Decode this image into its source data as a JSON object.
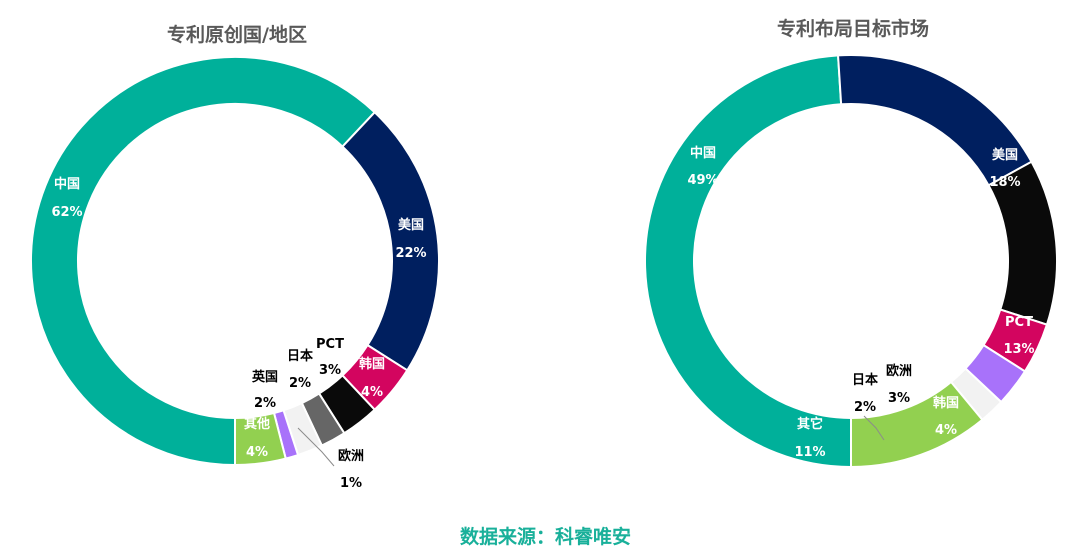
{
  "colors": {
    "teal": "#00B09A",
    "navy": "#001F5F",
    "magenta": "#D3055F",
    "black": "#0A0A0A",
    "darkgray": "#666666",
    "lightgray": "#F2F2F2",
    "purple": "#A872FA",
    "green": "#92D050"
  },
  "chart_data": [
    {
      "type": "pie",
      "title": "专利原创国/地区",
      "slices": [
        {
          "name": "中国",
          "value": 62,
          "label": "62%",
          "color": "#00B09A"
        },
        {
          "name": "美国",
          "value": 22,
          "label": "22%",
          "color": "#001F5F"
        },
        {
          "name": "韩国",
          "value": 4,
          "label": "4%",
          "color": "#D3055F"
        },
        {
          "name": "PCT",
          "value": 3,
          "label": "3%",
          "color": "#0A0A0A"
        },
        {
          "name": "日本",
          "value": 2,
          "label": "2%",
          "color": "#666666"
        },
        {
          "name": "英国",
          "value": 2,
          "label": "2%",
          "color": "#F2F2F2"
        },
        {
          "name": "欧洲",
          "value": 1,
          "label": "1%",
          "color": "#A872FA"
        },
        {
          "name": "其他",
          "value": 4,
          "label": "4%",
          "color": "#92D050"
        }
      ]
    },
    {
      "type": "pie",
      "title": "专利布局目标市场",
      "slices": [
        {
          "name": "中国",
          "value": 49,
          "label": "49%",
          "color": "#00B09A"
        },
        {
          "name": "美国",
          "value": 18,
          "label": "18%",
          "color": "#001F5F"
        },
        {
          "name": "PCT",
          "value": 13,
          "label": "13%",
          "color": "#0A0A0A"
        },
        {
          "name": "韩国",
          "value": 4,
          "label": "4%",
          "color": "#D3055F"
        },
        {
          "name": "欧洲",
          "value": 3,
          "label": "3%",
          "color": "#A872FA"
        },
        {
          "name": "日本",
          "value": 2,
          "label": "2%",
          "color": "#F2F2F2"
        },
        {
          "name": "其它",
          "value": 11,
          "label": "11%",
          "color": "#92D050"
        }
      ]
    }
  ],
  "footer": {
    "source": "数据来源：科睿唯安"
  }
}
